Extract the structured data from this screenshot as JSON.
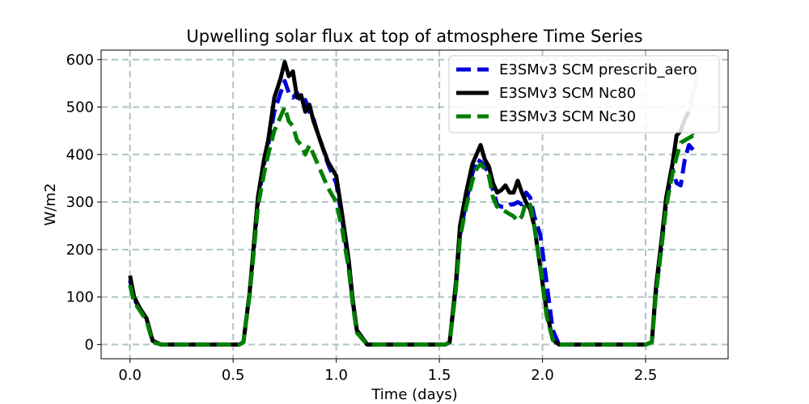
{
  "chart_data": {
    "type": "line",
    "title": "Upwelling solar flux at top of atmosphere Time Series",
    "xlabel": "Time (days)",
    "ylabel": "W/m2",
    "xlim": [
      -0.14,
      2.9
    ],
    "ylim": [
      -30,
      620
    ],
    "xticks": [
      0.0,
      0.5,
      1.0,
      1.5,
      2.0,
      2.5
    ],
    "xtick_labels": [
      "0.0",
      "0.5",
      "1.0",
      "1.5",
      "2.0",
      "2.5"
    ],
    "yticks": [
      0,
      100,
      200,
      300,
      400,
      500,
      600
    ],
    "ytick_labels": [
      "0",
      "100",
      "200",
      "300",
      "400",
      "500",
      "600"
    ],
    "grid": true,
    "legend_position": "top-right",
    "series": [
      {
        "name": "E3SMv3 SCM prescrib_aero",
        "color": "#0000dd",
        "style": "dashed",
        "x": [
          0.0,
          0.02,
          0.05,
          0.08,
          0.11,
          0.15,
          0.3,
          0.45,
          0.5,
          0.53,
          0.55,
          0.58,
          0.6,
          0.62,
          0.65,
          0.67,
          0.7,
          0.73,
          0.75,
          0.77,
          0.79,
          0.81,
          0.83,
          0.85,
          0.87,
          0.89,
          0.91,
          0.93,
          0.96,
          1.0,
          1.03,
          1.06,
          1.08,
          1.1,
          1.15,
          1.3,
          1.45,
          1.5,
          1.53,
          1.55,
          1.58,
          1.6,
          1.63,
          1.66,
          1.68,
          1.7,
          1.72,
          1.74,
          1.76,
          1.78,
          1.8,
          1.82,
          1.84,
          1.86,
          1.88,
          1.9,
          1.92,
          1.94,
          1.96,
          1.99,
          2.02,
          2.05,
          2.08,
          2.1,
          2.15,
          2.3,
          2.45,
          2.5,
          2.53,
          2.55,
          2.58,
          2.6,
          2.63,
          2.65,
          2.67,
          2.69,
          2.71,
          2.73,
          2.75
        ],
        "y": [
          135,
          95,
          75,
          55,
          8,
          0,
          0,
          0,
          0,
          0,
          5,
          110,
          200,
          300,
          380,
          420,
          490,
          530,
          555,
          530,
          520,
          530,
          510,
          515,
          490,
          475,
          445,
          420,
          380,
          340,
          260,
          170,
          90,
          30,
          0,
          0,
          0,
          0,
          0,
          5,
          120,
          230,
          300,
          360,
          390,
          385,
          375,
          360,
          325,
          295,
          290,
          290,
          295,
          295,
          300,
          295,
          320,
          310,
          270,
          230,
          130,
          30,
          0,
          0,
          0,
          0,
          0,
          0,
          5,
          110,
          220,
          300,
          370,
          340,
          335,
          390,
          420,
          410,
          400
        ]
      },
      {
        "name": "E3SMv3 SCM Nc80",
        "color": "#000000",
        "style": "solid",
        "x": [
          0.0,
          0.02,
          0.05,
          0.08,
          0.11,
          0.15,
          0.3,
          0.45,
          0.5,
          0.53,
          0.55,
          0.58,
          0.6,
          0.62,
          0.65,
          0.67,
          0.7,
          0.73,
          0.75,
          0.77,
          0.79,
          0.81,
          0.83,
          0.85,
          0.87,
          0.89,
          0.91,
          0.93,
          0.96,
          1.0,
          1.03,
          1.06,
          1.08,
          1.1,
          1.15,
          1.3,
          1.45,
          1.5,
          1.53,
          1.55,
          1.58,
          1.6,
          1.63,
          1.66,
          1.68,
          1.7,
          1.72,
          1.74,
          1.76,
          1.78,
          1.8,
          1.82,
          1.84,
          1.86,
          1.88,
          1.9,
          1.92,
          1.94,
          1.96,
          1.99,
          2.02,
          2.05,
          2.08,
          2.1,
          2.15,
          2.3,
          2.45,
          2.5,
          2.53,
          2.55,
          2.58,
          2.6,
          2.63,
          2.65,
          2.67,
          2.69,
          2.71
        ],
        "y": [
          145,
          100,
          75,
          55,
          8,
          0,
          0,
          0,
          0,
          0,
          5,
          110,
          210,
          310,
          390,
          430,
          520,
          560,
          595,
          565,
          575,
          520,
          525,
          490,
          505,
          470,
          445,
          420,
          385,
          355,
          270,
          180,
          95,
          30,
          0,
          0,
          0,
          0,
          0,
          5,
          130,
          250,
          320,
          380,
          400,
          420,
          390,
          375,
          340,
          320,
          325,
          335,
          320,
          320,
          345,
          320,
          300,
          285,
          250,
          160,
          70,
          10,
          0,
          0,
          0,
          0,
          0,
          0,
          5,
          120,
          230,
          310,
          380,
          440,
          450,
          475,
          490
        ]
      },
      {
        "name": "E3SMv3 SCM Nc30",
        "color": "#007f00",
        "style": "dashed",
        "x": [
          0.0,
          0.02,
          0.05,
          0.08,
          0.11,
          0.15,
          0.3,
          0.45,
          0.5,
          0.53,
          0.55,
          0.58,
          0.6,
          0.62,
          0.65,
          0.67,
          0.7,
          0.73,
          0.75,
          0.77,
          0.79,
          0.81,
          0.83,
          0.85,
          0.87,
          0.89,
          0.91,
          0.93,
          0.96,
          1.0,
          1.03,
          1.06,
          1.08,
          1.1,
          1.15,
          1.3,
          1.45,
          1.5,
          1.53,
          1.55,
          1.58,
          1.6,
          1.63,
          1.66,
          1.68,
          1.7,
          1.72,
          1.74,
          1.76,
          1.78,
          1.8,
          1.82,
          1.84,
          1.86,
          1.88,
          1.9,
          1.92,
          1.94,
          1.96,
          1.99,
          2.02,
          2.05,
          2.08,
          2.1,
          2.15,
          2.3,
          2.45,
          2.5,
          2.53,
          2.55,
          2.58,
          2.6,
          2.63,
          2.65,
          2.67,
          2.69,
          2.71,
          2.73,
          2.75
        ],
        "y": [
          125,
          90,
          70,
          50,
          5,
          0,
          0,
          0,
          0,
          0,
          5,
          105,
          195,
          290,
          360,
          400,
          450,
          480,
          500,
          470,
          460,
          430,
          420,
          400,
          420,
          400,
          380,
          360,
          330,
          300,
          240,
          160,
          85,
          25,
          0,
          0,
          0,
          0,
          0,
          5,
          115,
          225,
          290,
          345,
          370,
          380,
          370,
          355,
          310,
          290,
          285,
          280,
          275,
          270,
          260,
          270,
          300,
          295,
          250,
          160,
          60,
          10,
          0,
          0,
          0,
          0,
          0,
          0,
          5,
          105,
          215,
          290,
          360,
          395,
          425,
          430,
          435,
          440,
          430
        ]
      },
      {
        "name": "",
        "color": "#c8c8c8",
        "style": "solid",
        "x": [
          2.71,
          2.73,
          2.75
        ],
        "y": [
          490,
          530,
          565
        ]
      }
    ]
  }
}
